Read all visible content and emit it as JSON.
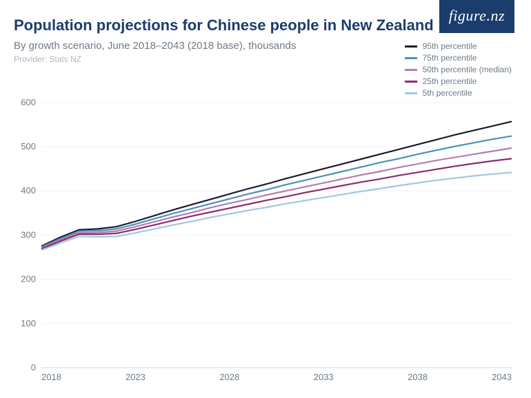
{
  "logo": {
    "text": "figure.nz",
    "bg_color": "#1b3d6d",
    "text_color": "#ffffff"
  },
  "title": "Population projections for Chinese people in New Zealand",
  "subtitle": "By growth scenario, June 2018–2043 (2018 base), thousands",
  "provider": "Provider: Stats NZ",
  "colors": {
    "title": "#1b3d6d",
    "subtitle": "#6c7a89",
    "provider": "#b0b8c0",
    "grid": "#eef1f4",
    "axis": "#cfd6dd",
    "tick_text": "#6c7a89",
    "background": "#ffffff"
  },
  "legend": [
    {
      "label": "95th percentile",
      "color": "#1a1a2e"
    },
    {
      "label": "75th percentile",
      "color": "#4a90b8"
    },
    {
      "label": "50th percentile (median)",
      "color": "#b77bb4"
    },
    {
      "label": "25th percentile",
      "color": "#8e2a6b"
    },
    {
      "label": "5th percentile",
      "color": "#9fc8e0"
    }
  ],
  "chart": {
    "type": "line",
    "x_label_years": [
      2018,
      2023,
      2028,
      2033,
      2038,
      2043
    ],
    "xlim": [
      2018,
      2043
    ],
    "ylim": [
      0,
      620
    ],
    "ytick_step": 100,
    "yticks": [
      0,
      100,
      200,
      300,
      400,
      500,
      600
    ],
    "line_width": 2.2,
    "title_fontsize": 22,
    "subtitle_fontsize": 15,
    "provider_fontsize": 12,
    "legend_fontsize": 12,
    "tick_fontsize": 13,
    "x_years": [
      2018,
      2019,
      2020,
      2021,
      2022,
      2023,
      2024,
      2025,
      2026,
      2027,
      2028,
      2029,
      2030,
      2031,
      2032,
      2033,
      2034,
      2035,
      2036,
      2037,
      2038,
      2039,
      2040,
      2041,
      2042,
      2043
    ],
    "series": [
      {
        "name": "p95",
        "color": "#1a1a2e",
        "y": [
          275,
          295,
          312,
          314,
          319,
          331,
          344,
          357,
          369,
          381,
          393,
          405,
          416,
          428,
          439,
          450,
          461,
          472,
          483,
          494,
          505,
          516,
          527,
          537,
          547,
          557
        ]
      },
      {
        "name": "p75",
        "color": "#4a90b8",
        "y": [
          273,
          292,
          309,
          310,
          314,
          325,
          337,
          349,
          360,
          371,
          382,
          393,
          403,
          414,
          424,
          434,
          444,
          454,
          464,
          473,
          483,
          492,
          501,
          509,
          517,
          524
        ]
      },
      {
        "name": "p50",
        "color": "#b77bb4",
        "y": [
          271,
          289,
          305,
          306,
          309,
          319,
          330,
          341,
          351,
          362,
          372,
          381,
          391,
          400,
          409,
          418,
          427,
          436,
          444,
          453,
          461,
          469,
          476,
          483,
          490,
          497
        ]
      },
      {
        "name": "p25",
        "color": "#8e2a6b",
        "y": [
          269,
          286,
          302,
          302,
          304,
          313,
          323,
          333,
          343,
          352,
          361,
          370,
          379,
          387,
          396,
          404,
          412,
          420,
          427,
          435,
          442,
          449,
          456,
          462,
          468,
          473
        ]
      },
      {
        "name": "p5",
        "color": "#9fc8e0",
        "y": [
          266,
          282,
          297,
          296,
          297,
          305,
          314,
          323,
          331,
          340,
          348,
          356,
          363,
          371,
          378,
          385,
          392,
          399,
          405,
          412,
          418,
          424,
          429,
          434,
          438,
          442
        ]
      }
    ]
  }
}
